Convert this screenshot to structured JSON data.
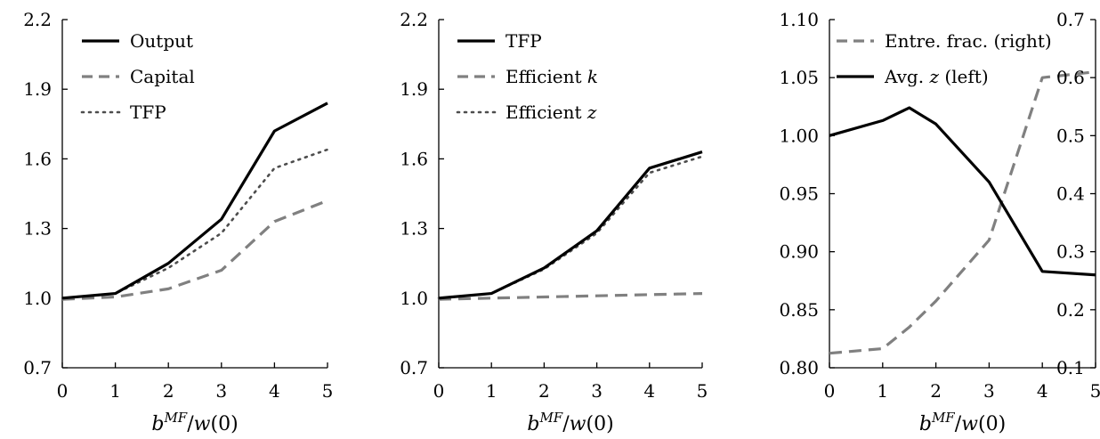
{
  "colors": {
    "solid": "#000000",
    "dashed": "#808080",
    "dotted": "#4d4d4d"
  },
  "chart_data": [
    {
      "type": "line",
      "xlabel": "b^MF/w(0)",
      "x": [
        0,
        1,
        2,
        3,
        4,
        5
      ],
      "x_ticks": [
        "0",
        "1",
        "2",
        "3",
        "4",
        "5"
      ],
      "ylim": [
        0.7,
        2.2
      ],
      "y_ticks": [
        "0.7",
        "1.0",
        "1.3",
        "1.6",
        "1.9",
        "2.2"
      ],
      "legend_position": "top-left",
      "series": [
        {
          "name": "Output",
          "style": "solid",
          "values": [
            1.0,
            1.02,
            1.15,
            1.34,
            1.72,
            1.84
          ]
        },
        {
          "name": "Capital",
          "style": "dashed",
          "values": [
            0.995,
            1.005,
            1.04,
            1.12,
            1.33,
            1.42
          ]
        },
        {
          "name": "TFP",
          "style": "dotted",
          "values": [
            1.0,
            1.02,
            1.13,
            1.28,
            1.56,
            1.64
          ]
        }
      ]
    },
    {
      "type": "line",
      "xlabel": "b^MF/w(0)",
      "x": [
        0,
        1,
        2,
        3,
        4,
        5
      ],
      "x_ticks": [
        "0",
        "1",
        "2",
        "3",
        "4",
        "5"
      ],
      "ylim": [
        0.7,
        2.2
      ],
      "y_ticks": [
        "0.7",
        "1.0",
        "1.3",
        "1.6",
        "1.9",
        "2.2"
      ],
      "legend_position": "top-left",
      "series": [
        {
          "name": "TFP",
          "style": "solid",
          "values": [
            1.0,
            1.02,
            1.13,
            1.29,
            1.56,
            1.63
          ]
        },
        {
          "name": "Efficient k",
          "style": "dashed",
          "values": [
            0.995,
            1.0,
            1.005,
            1.01,
            1.015,
            1.02
          ]
        },
        {
          "name": "Efficient z",
          "style": "dotted",
          "values": [
            1.0,
            1.02,
            1.125,
            1.28,
            1.54,
            1.61
          ]
        }
      ]
    },
    {
      "type": "line",
      "xlabel": "b^MF/w(0)",
      "x_ticks": [
        "0",
        "1",
        "2",
        "3",
        "4",
        "5"
      ],
      "xlim": [
        0,
        5
      ],
      "ylim_left": [
        0.8,
        1.1
      ],
      "y_ticks_left": [
        "0.80",
        "0.85",
        "0.90",
        "0.95",
        "1.00",
        "1.05",
        "1.10"
      ],
      "ylim_right": [
        0.1,
        0.7
      ],
      "y_ticks_right": [
        "0.1",
        "0.2",
        "0.3",
        "0.4",
        "0.5",
        "0.6",
        "0.7"
      ],
      "legend_position": "top-right",
      "series": [
        {
          "name": "Entre. frac. (right)",
          "style": "dashed",
          "axis": "right",
          "x": [
            0,
            1,
            1.5,
            2,
            3,
            4,
            5
          ],
          "values": [
            0.125,
            0.133,
            0.17,
            0.215,
            0.32,
            0.6,
            0.61
          ]
        },
        {
          "name": "Avg. z (left)",
          "style": "solid",
          "axis": "left",
          "x": [
            0,
            1,
            1.5,
            2,
            3,
            4,
            5
          ],
          "values": [
            1.0,
            1.013,
            1.024,
            1.01,
            0.96,
            0.883,
            0.88
          ]
        }
      ]
    }
  ]
}
